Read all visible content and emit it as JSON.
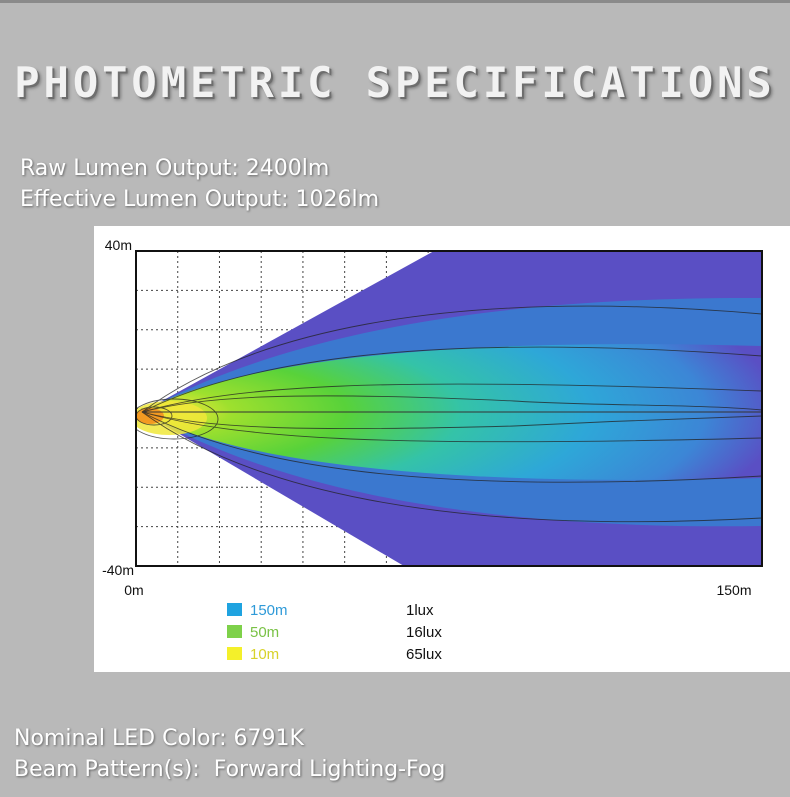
{
  "title": "PHOTOMETRIC SPECIFICATIONS",
  "specs": {
    "raw_lumen": "Raw Lumen Output: 2400lm",
    "effective_lumen": "Effective Lumen Output: 1026lm",
    "led_color": "Nominal LED Color: 6791K",
    "beam_pattern": "Beam Pattern(s):  Forward Lighting-Fog"
  },
  "colors": {
    "page_background": "#b9b9b9",
    "beam_outer": "#5a4fc4",
    "beam_mid": "#2ea7d8",
    "beam_green": "#58d23a",
    "beam_yellow": "#f0e83a",
    "beam_hot": "#f39a22"
  },
  "chart_data": {
    "type": "heatmap",
    "title": "",
    "ylim": [
      -40,
      40
    ],
    "xlim": [
      0,
      150
    ],
    "y_tick_labels": [
      "40m",
      "-40m"
    ],
    "x_tick_labels": [
      "0m",
      "150m"
    ],
    "grid": true,
    "legend_placement": "bottom-left",
    "legend": [
      {
        "distance": "150m",
        "lux": "1lux",
        "color": "#1fa3e0"
      },
      {
        "distance": "50m",
        "lux": "16lux",
        "color": "#7ed14a"
      },
      {
        "distance": "10m",
        "lux": "65lux",
        "color": "#f4f02a"
      }
    ]
  }
}
